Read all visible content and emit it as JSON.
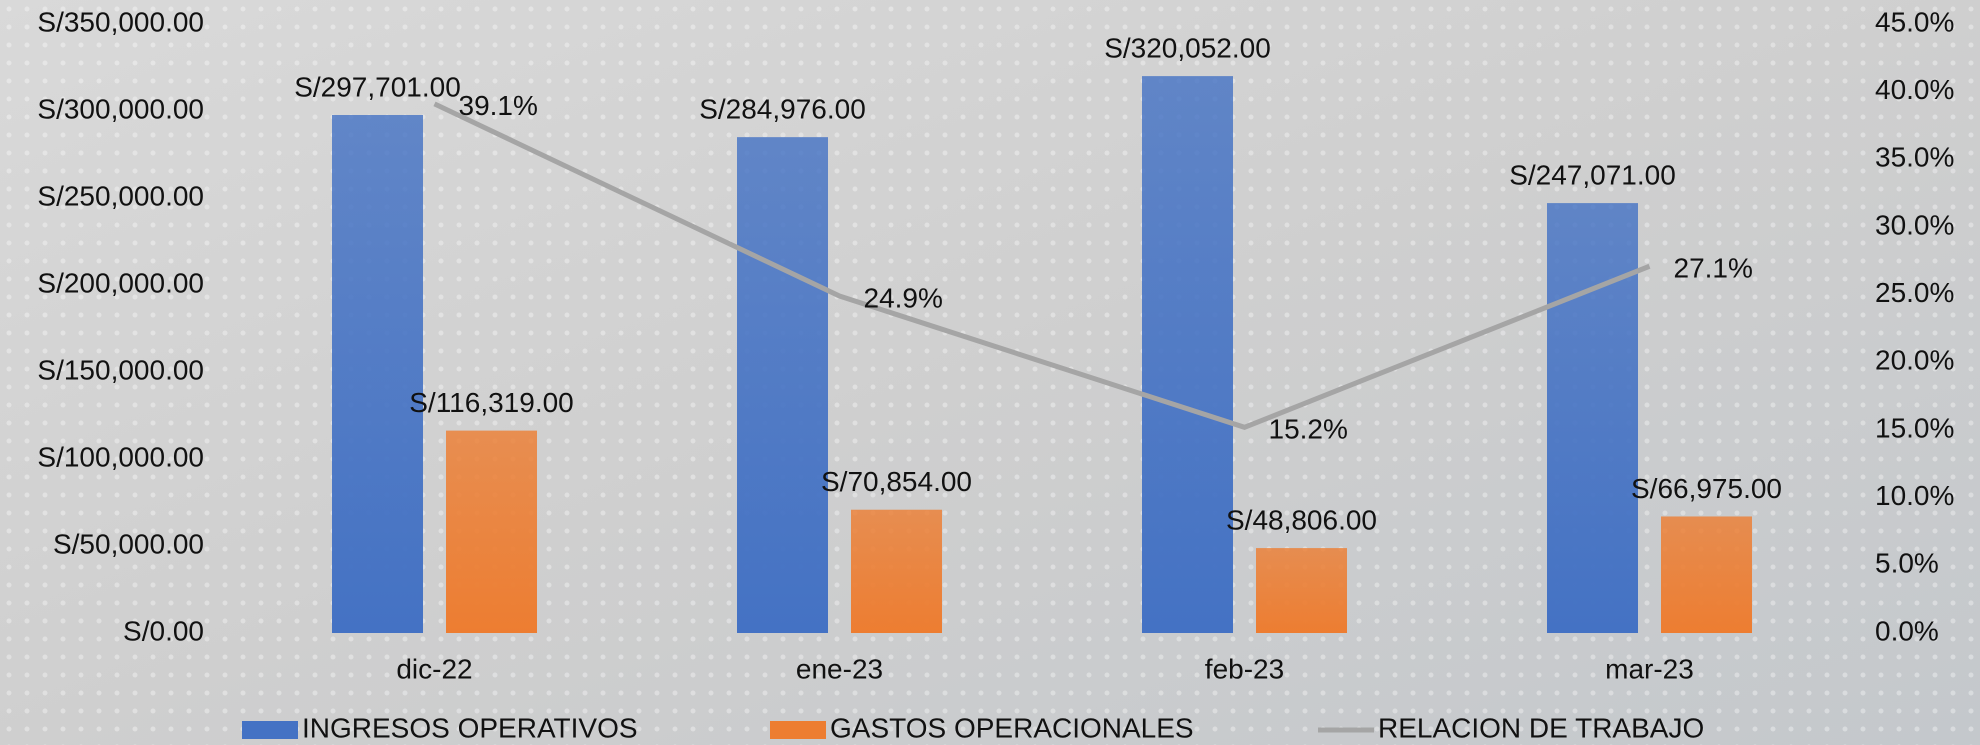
{
  "chart_data": {
    "type": "bar",
    "categories": [
      "dic-22",
      "ene-23",
      "feb-23",
      "mar-23"
    ],
    "series": [
      {
        "name": "INGRESOS OPERATIVOS",
        "type": "bar",
        "color": "#4472c4",
        "values": [
          297701,
          284976,
          320052,
          247071
        ],
        "value_labels": [
          "S/297,701.00",
          "S/284,976.00",
          "S/320,052.00",
          "S/247,071.00"
        ]
      },
      {
        "name": "GASTOS OPERACIONALES",
        "type": "bar",
        "color": "#ed7d31",
        "values": [
          116319,
          70854,
          48806,
          66975
        ],
        "value_labels": [
          "S/116,319.00",
          "S/70,854.00",
          "S/48,806.00",
          "S/66,975.00"
        ]
      },
      {
        "name": "RELACION DE TRABAJO",
        "type": "line",
        "axis": "y2",
        "color": "#a5a5a5",
        "values": [
          39.1,
          24.9,
          15.2,
          27.1
        ],
        "value_labels": [
          "39.1%",
          "24.9%",
          "15.2%",
          "27.1%"
        ]
      }
    ],
    "ylim": [
      0,
      350000
    ],
    "yticks": [
      {
        "value": 0,
        "label": "S/0.00"
      },
      {
        "value": 50000,
        "label": "S/50,000.00"
      },
      {
        "value": 100000,
        "label": "S/100,000.00"
      },
      {
        "value": 150000,
        "label": "S/150,000.00"
      },
      {
        "value": 200000,
        "label": "S/200,000.00"
      },
      {
        "value": 250000,
        "label": "S/250,000.00"
      },
      {
        "value": 300000,
        "label": "S/300,000.00"
      },
      {
        "value": 350000,
        "label": "S/350,000.00"
      }
    ],
    "y2lim": [
      0,
      45
    ],
    "y2ticks": [
      {
        "value": 0,
        "label": "0.0%"
      },
      {
        "value": 5,
        "label": "5.0%"
      },
      {
        "value": 10,
        "label": "10.0%"
      },
      {
        "value": 15,
        "label": "15.0%"
      },
      {
        "value": 20,
        "label": "20.0%"
      },
      {
        "value": 25,
        "label": "25.0%"
      },
      {
        "value": 30,
        "label": "30.0%"
      },
      {
        "value": 35,
        "label": "35.0%"
      },
      {
        "value": 40,
        "label": "40.0%"
      },
      {
        "value": 45,
        "label": "45.0%"
      }
    ],
    "legend": "bottom"
  }
}
